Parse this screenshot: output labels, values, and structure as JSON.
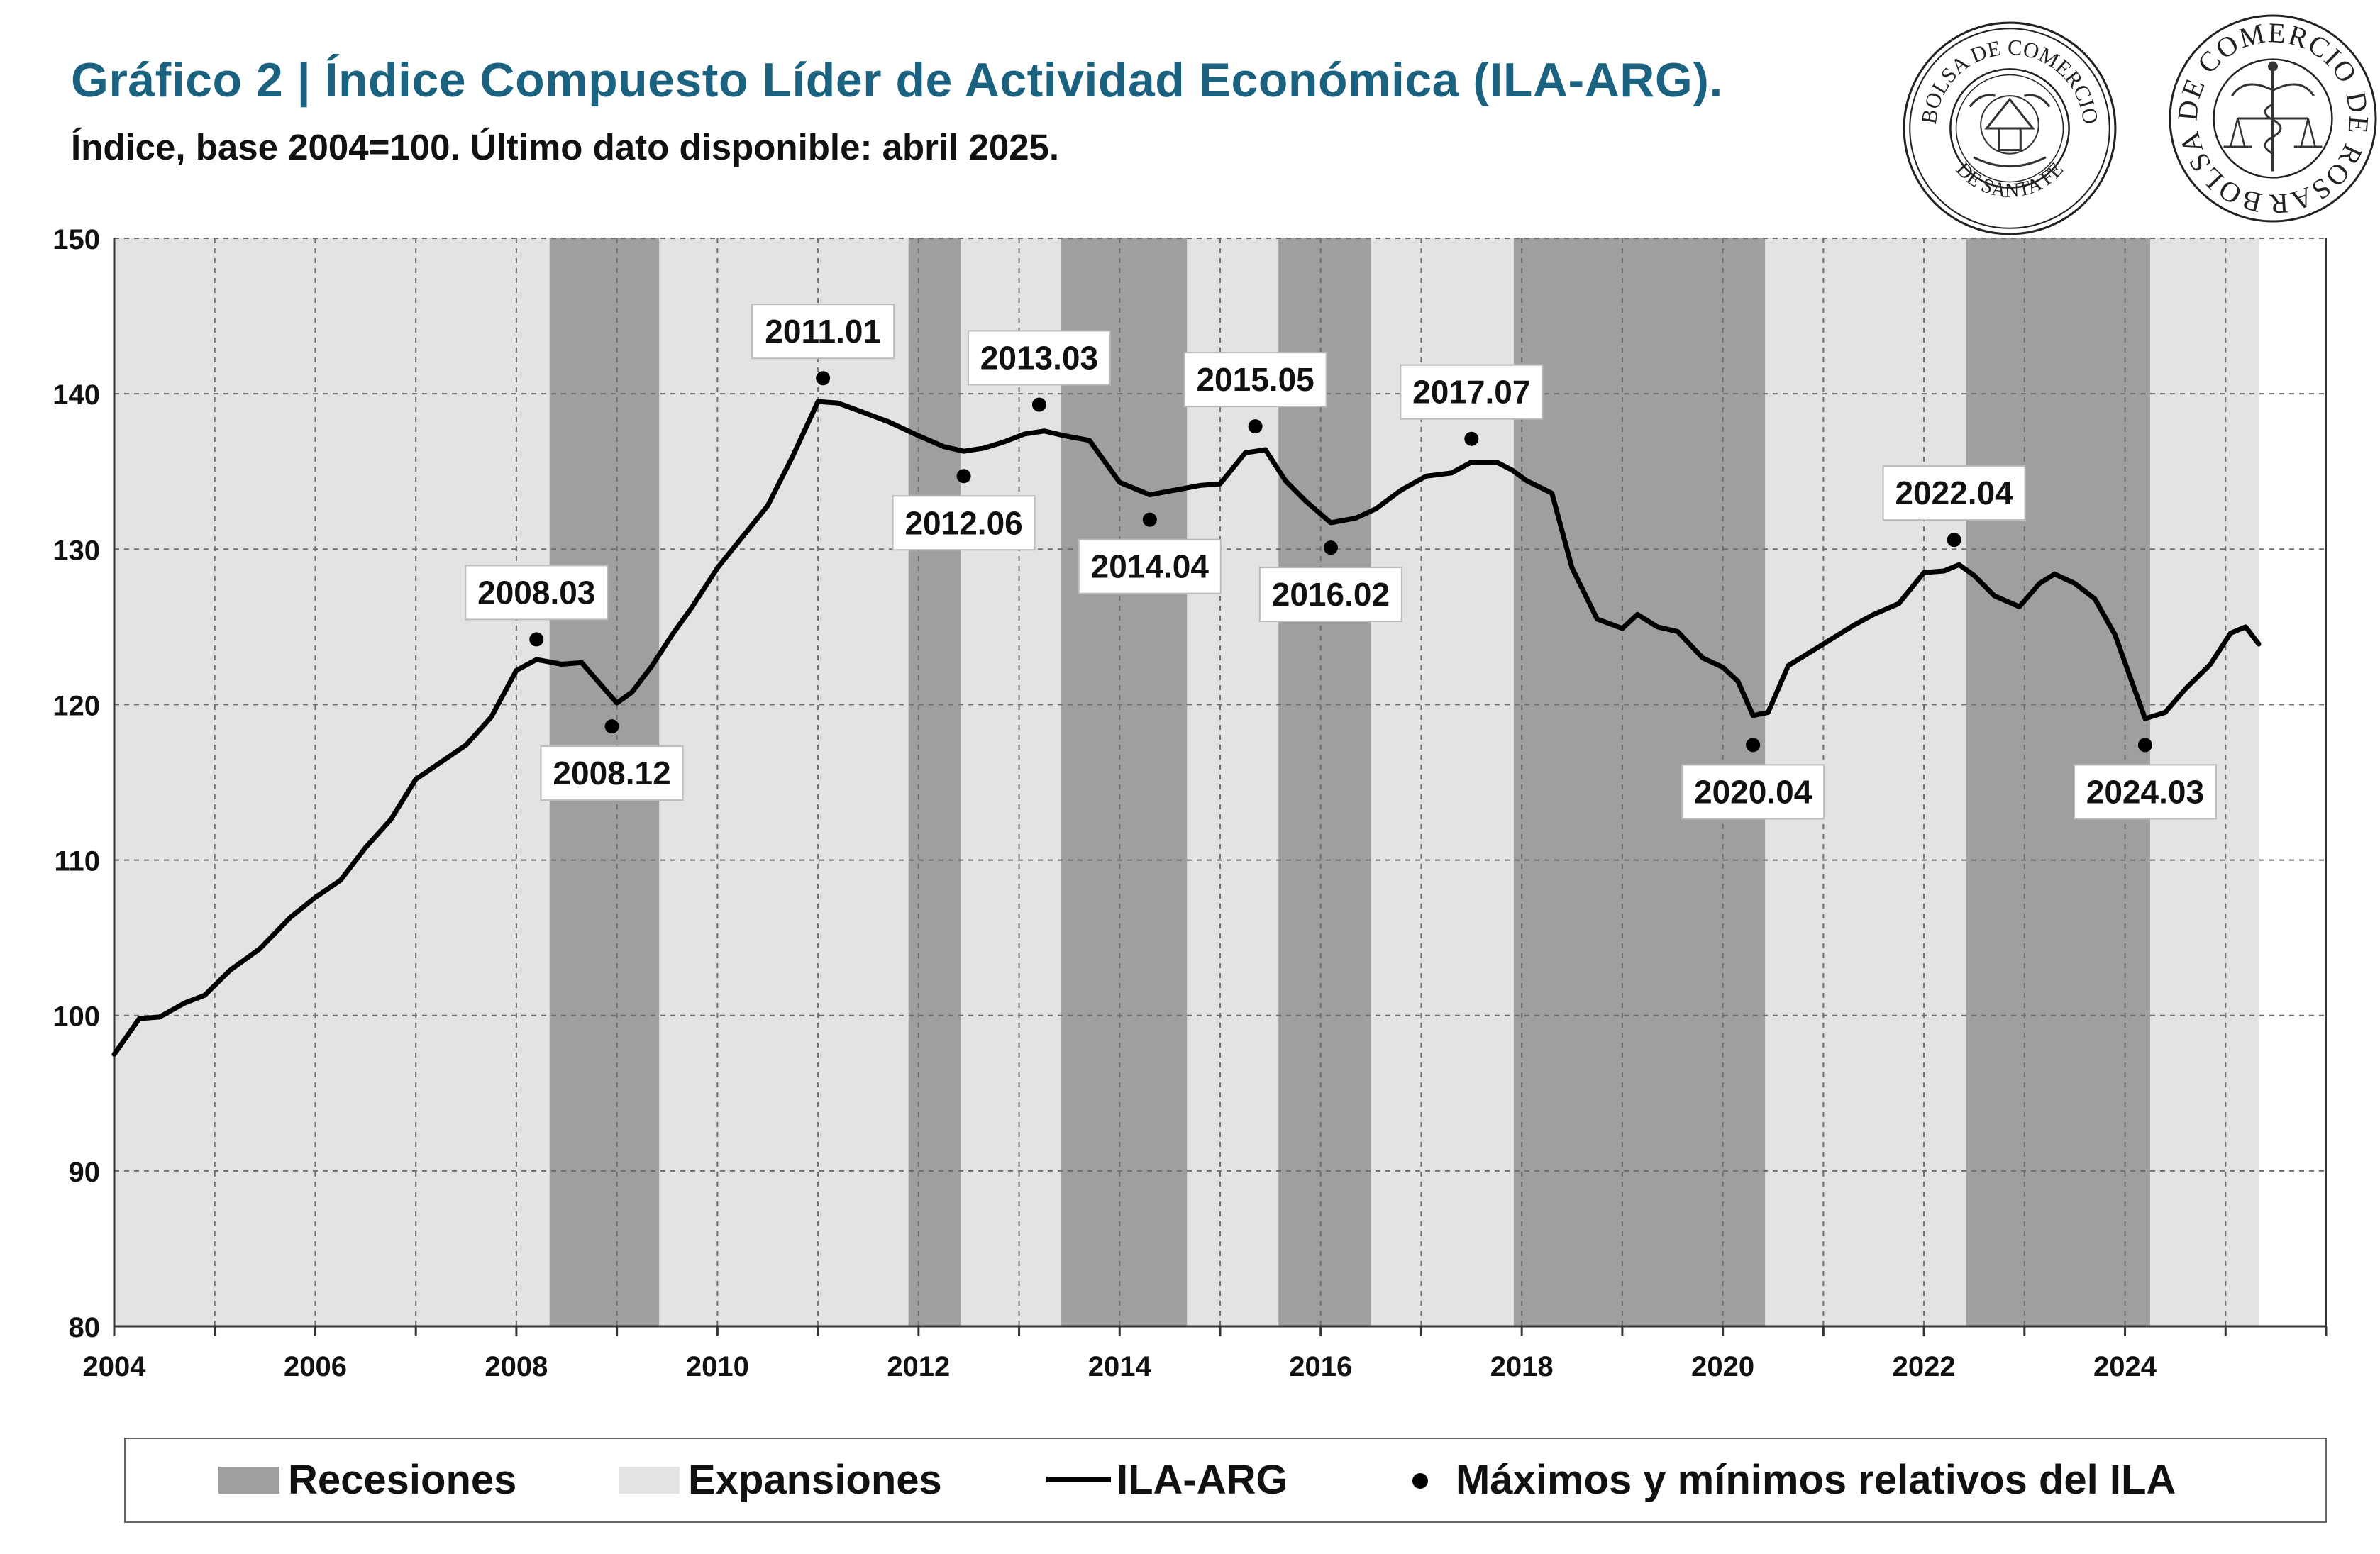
{
  "header": {
    "title": "Gráfico 2 | Índice Compuesto Líder de Actividad Económica (ILA-ARG).",
    "subtitle": "Índice, base 2004=100. Último dato disponible: abril 2025."
  },
  "logos": {
    "bcsf": {
      "text_top": "BOLSA DE COMERCIO",
      "text_bottom": "DE SANTA FE"
    },
    "bcr": {
      "text": "BOLSA DE COMERCIO DE ROSARIO"
    }
  },
  "colors": {
    "recession": "#9f9f9f",
    "expansion": "#e3e3e3",
    "line": "#000000",
    "title": "#1a6280"
  },
  "chart_data": {
    "type": "line",
    "x_start": 2004,
    "x_end": 2026,
    "xlim": [
      2004,
      2026
    ],
    "ylim": [
      80,
      150
    ],
    "yticks": [
      80,
      90,
      100,
      110,
      120,
      130,
      140,
      150
    ],
    "xticks": [
      2004,
      2006,
      2008,
      2010,
      2012,
      2014,
      2016,
      2018,
      2020,
      2022,
      2024
    ],
    "grid": true,
    "recessions": [
      [
        2008.33,
        2009.42
      ],
      [
        2011.9,
        2012.42
      ],
      [
        2013.42,
        2014.67
      ],
      [
        2015.58,
        2016.5
      ],
      [
        2017.92,
        2020.42
      ],
      [
        2022.42,
        2024.25
      ]
    ],
    "expansions": [
      [
        2004.0,
        2008.33
      ],
      [
        2009.42,
        2011.9
      ],
      [
        2012.42,
        2013.42
      ],
      [
        2014.67,
        2015.58
      ],
      [
        2016.5,
        2017.92
      ],
      [
        2020.42,
        2022.42
      ],
      [
        2024.25,
        2025.33
      ]
    ],
    "series": [
      {
        "name": "ILA-ARG",
        "points": [
          [
            2004.0,
            97.5
          ],
          [
            2004.25,
            99.8
          ],
          [
            2004.45,
            99.9
          ],
          [
            2004.7,
            100.8
          ],
          [
            2004.9,
            101.3
          ],
          [
            2005.15,
            102.9
          ],
          [
            2005.45,
            104.3
          ],
          [
            2005.75,
            106.3
          ],
          [
            2006.0,
            107.6
          ],
          [
            2006.25,
            108.7
          ],
          [
            2006.5,
            110.8
          ],
          [
            2006.75,
            112.6
          ],
          [
            2007.0,
            115.2
          ],
          [
            2007.25,
            116.3
          ],
          [
            2007.5,
            117.4
          ],
          [
            2007.75,
            119.2
          ],
          [
            2008.0,
            122.2
          ],
          [
            2008.2,
            122.9
          ],
          [
            2008.45,
            122.6
          ],
          [
            2008.65,
            122.7
          ],
          [
            2008.85,
            121.2
          ],
          [
            2009.0,
            120.1
          ],
          [
            2009.15,
            120.8
          ],
          [
            2009.35,
            122.5
          ],
          [
            2009.55,
            124.5
          ],
          [
            2009.75,
            126.3
          ],
          [
            2010.0,
            128.8
          ],
          [
            2010.25,
            130.8
          ],
          [
            2010.5,
            132.8
          ],
          [
            2010.75,
            136.0
          ],
          [
            2011.0,
            139.5
          ],
          [
            2011.2,
            139.4
          ],
          [
            2011.45,
            138.8
          ],
          [
            2011.7,
            138.2
          ],
          [
            2012.0,
            137.3
          ],
          [
            2012.25,
            136.6
          ],
          [
            2012.45,
            136.3
          ],
          [
            2012.65,
            136.5
          ],
          [
            2012.85,
            136.9
          ],
          [
            2013.05,
            137.4
          ],
          [
            2013.25,
            137.6
          ],
          [
            2013.45,
            137.3
          ],
          [
            2013.7,
            137.0
          ],
          [
            2014.0,
            134.3
          ],
          [
            2014.3,
            133.5
          ],
          [
            2014.55,
            133.8
          ],
          [
            2014.8,
            134.1
          ],
          [
            2015.0,
            134.2
          ],
          [
            2015.25,
            136.2
          ],
          [
            2015.45,
            136.4
          ],
          [
            2015.65,
            134.4
          ],
          [
            2015.85,
            133.1
          ],
          [
            2016.1,
            131.7
          ],
          [
            2016.35,
            132.0
          ],
          [
            2016.55,
            132.6
          ],
          [
            2016.8,
            133.8
          ],
          [
            2017.05,
            134.7
          ],
          [
            2017.3,
            134.9
          ],
          [
            2017.5,
            135.6
          ],
          [
            2017.75,
            135.6
          ],
          [
            2017.9,
            135.1
          ],
          [
            2018.05,
            134.4
          ],
          [
            2018.3,
            133.6
          ],
          [
            2018.5,
            128.8
          ],
          [
            2018.75,
            125.5
          ],
          [
            2019.0,
            124.9
          ],
          [
            2019.15,
            125.8
          ],
          [
            2019.35,
            125.0
          ],
          [
            2019.55,
            124.7
          ],
          [
            2019.8,
            123.0
          ],
          [
            2020.0,
            122.4
          ],
          [
            2020.15,
            121.5
          ],
          [
            2020.3,
            119.3
          ],
          [
            2020.45,
            119.5
          ],
          [
            2020.65,
            122.5
          ],
          [
            2020.85,
            123.3
          ],
          [
            2021.05,
            124.1
          ],
          [
            2021.3,
            125.1
          ],
          [
            2021.5,
            125.8
          ],
          [
            2021.75,
            126.5
          ],
          [
            2022.0,
            128.5
          ],
          [
            2022.2,
            128.6
          ],
          [
            2022.35,
            129.0
          ],
          [
            2022.5,
            128.3
          ],
          [
            2022.7,
            127.0
          ],
          [
            2022.95,
            126.3
          ],
          [
            2023.15,
            127.8
          ],
          [
            2023.3,
            128.4
          ],
          [
            2023.5,
            127.8
          ],
          [
            2023.7,
            126.8
          ],
          [
            2023.9,
            124.5
          ],
          [
            2024.05,
            121.8
          ],
          [
            2024.2,
            119.1
          ],
          [
            2024.4,
            119.5
          ],
          [
            2024.6,
            121.0
          ],
          [
            2024.85,
            122.6
          ],
          [
            2025.05,
            124.6
          ],
          [
            2025.2,
            125.0
          ],
          [
            2025.33,
            123.9
          ]
        ]
      }
    ],
    "turning_points": [
      {
        "label": "2008.03",
        "x": 2008.2,
        "y": 124.2,
        "position": "above"
      },
      {
        "label": "2008.12",
        "x": 2008.95,
        "y": 118.6,
        "position": "below"
      },
      {
        "label": "2011.01",
        "x": 2011.05,
        "y": 141.0,
        "position": "above"
      },
      {
        "label": "2012.06",
        "x": 2012.45,
        "y": 134.7,
        "position": "below"
      },
      {
        "label": "2013.03",
        "x": 2013.2,
        "y": 139.3,
        "position": "above"
      },
      {
        "label": "2014.04",
        "x": 2014.3,
        "y": 131.9,
        "position": "below"
      },
      {
        "label": "2015.05",
        "x": 2015.35,
        "y": 137.9,
        "position": "above"
      },
      {
        "label": "2016.02",
        "x": 2016.1,
        "y": 130.1,
        "position": "below"
      },
      {
        "label": "2017.07",
        "x": 2017.5,
        "y": 137.1,
        "position": "above"
      },
      {
        "label": "2020.04",
        "x": 2020.3,
        "y": 117.4,
        "position": "below"
      },
      {
        "label": "2022.04",
        "x": 2022.3,
        "y": 130.6,
        "position": "above"
      },
      {
        "label": "2024.03",
        "x": 2024.2,
        "y": 117.4,
        "position": "below"
      }
    ],
    "legend": {
      "placement": "bottom",
      "recessions": "Recesiones",
      "expansions": "Expansiones",
      "line": "ILA-ARG",
      "points": "Máximos y mínimos relativos del ILA"
    }
  }
}
